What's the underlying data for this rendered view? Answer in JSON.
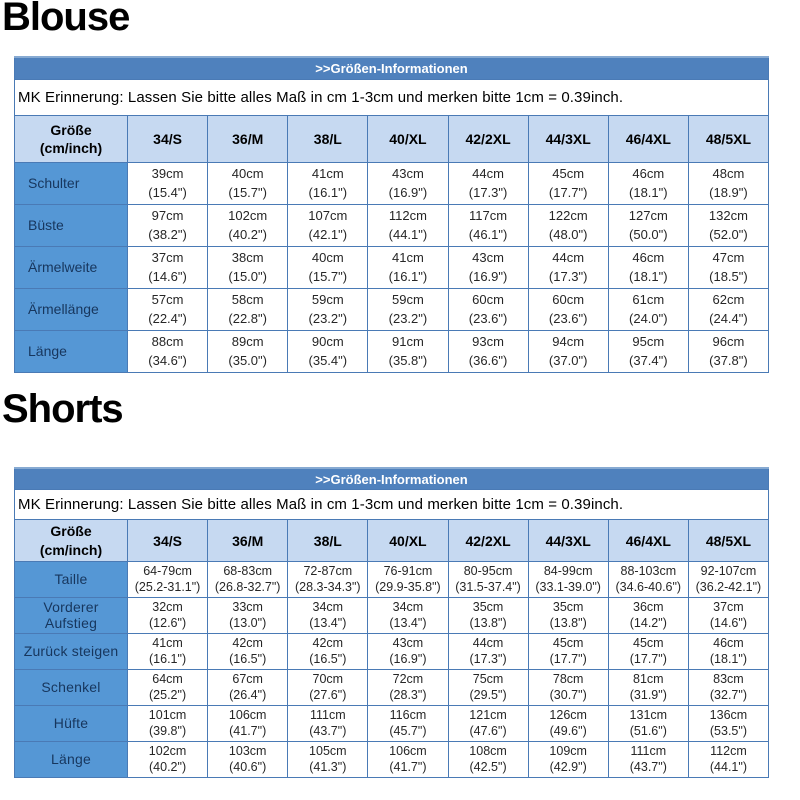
{
  "colors": {
    "banner-bg": "#4f81bd",
    "banner-edge": "#87aad2",
    "header-bg": "#c6d9f1",
    "label-bg": "#5597d5",
    "label-text": "#17365d",
    "border": "#4a7ab5",
    "data-text": "#262626"
  },
  "sections": [
    {
      "title": "Blouse",
      "table": {
        "banner": ">>Größen-Informationen",
        "note": "MK Erinnerung: Lassen Sie bitte alles Maß in cm 1-3cm und merken bitte 1cm = 0.39inch.",
        "corner": [
          "Größe",
          "(cm/inch)"
        ],
        "sizes": [
          "34/S",
          "36/M",
          "38/L",
          "40/XL",
          "42/2XL",
          "44/3XL",
          "46/4XL",
          "48/5XL"
        ],
        "rows": [
          {
            "label": "Schulter",
            "values": [
              [
                "39cm",
                "(15.4\")"
              ],
              [
                "40cm",
                "(15.7\")"
              ],
              [
                "41cm",
                "(16.1\")"
              ],
              [
                "43cm",
                "(16.9\")"
              ],
              [
                "44cm",
                "(17.3\")"
              ],
              [
                "45cm",
                "(17.7\")"
              ],
              [
                "46cm",
                "(18.1\")"
              ],
              [
                "48cm",
                "(18.9\")"
              ]
            ]
          },
          {
            "label": "Büste",
            "values": [
              [
                "97cm",
                "(38.2\")"
              ],
              [
                "102cm",
                "(40.2\")"
              ],
              [
                "107cm",
                "(42.1\")"
              ],
              [
                "112cm",
                "(44.1\")"
              ],
              [
                "117cm",
                "(46.1\")"
              ],
              [
                "122cm",
                "(48.0\")"
              ],
              [
                "127cm",
                "(50.0\")"
              ],
              [
                "132cm",
                "(52.0\")"
              ]
            ]
          },
          {
            "label": "Ärmelweite",
            "values": [
              [
                "37cm",
                "(14.6\")"
              ],
              [
                "38cm",
                "(15.0\")"
              ],
              [
                "40cm",
                "(15.7\")"
              ],
              [
                "41cm",
                "(16.1\")"
              ],
              [
                "43cm",
                "(16.9\")"
              ],
              [
                "44cm",
                "(17.3\")"
              ],
              [
                "46cm",
                "(18.1\")"
              ],
              [
                "47cm",
                "(18.5\")"
              ]
            ]
          },
          {
            "label": "Ärmellänge",
            "values": [
              [
                "57cm",
                "(22.4\")"
              ],
              [
                "58cm",
                "(22.8\")"
              ],
              [
                "59cm",
                "(23.2\")"
              ],
              [
                "59cm",
                "(23.2\")"
              ],
              [
                "60cm",
                "(23.6\")"
              ],
              [
                "60cm",
                "(23.6\")"
              ],
              [
                "61cm",
                "(24.0\")"
              ],
              [
                "62cm",
                "(24.4\")"
              ]
            ]
          },
          {
            "label": "Länge",
            "values": [
              [
                "88cm",
                "(34.6\")"
              ],
              [
                "89cm",
                "(35.0\")"
              ],
              [
                "90cm",
                "(35.4\")"
              ],
              [
                "91cm",
                "(35.8\")"
              ],
              [
                "93cm",
                "(36.6\")"
              ],
              [
                "94cm",
                "(37.0\")"
              ],
              [
                "95cm",
                "(37.4\")"
              ],
              [
                "96cm",
                "(37.8\")"
              ]
            ]
          }
        ]
      }
    },
    {
      "title": "Shorts",
      "table": {
        "banner": ">>Größen-Informationen",
        "note": "MK Erinnerung: Lassen Sie bitte alles Maß in cm 1-3cm und merken bitte 1cm = 0.39inch.",
        "corner": [
          "Größe",
          "(cm/inch)"
        ],
        "sizes": [
          "34/S",
          "36/M",
          "38/L",
          "40/XL",
          "42/2XL",
          "44/3XL",
          "46/4XL",
          "48/5XL"
        ],
        "rows": [
          {
            "label": "Taille",
            "values": [
              [
                "64-79cm",
                "(25.2-31.1\")"
              ],
              [
                "68-83cm",
                "(26.8-32.7\")"
              ],
              [
                "72-87cm",
                "(28.3-34.3\")"
              ],
              [
                "76-91cm",
                "(29.9-35.8\")"
              ],
              [
                "80-95cm",
                "(31.5-37.4\")"
              ],
              [
                "84-99cm",
                "(33.1-39.0\")"
              ],
              [
                "88-103cm",
                "(34.6-40.6\")"
              ],
              [
                "92-107cm",
                "(36.2-42.1\")"
              ]
            ]
          },
          {
            "label": "Vorderer Aufstieg",
            "values": [
              [
                "32cm",
                "(12.6\")"
              ],
              [
                "33cm",
                "(13.0\")"
              ],
              [
                "34cm",
                "(13.4\")"
              ],
              [
                "34cm",
                "(13.4\")"
              ],
              [
                "35cm",
                "(13.8\")"
              ],
              [
                "35cm",
                "(13.8\")"
              ],
              [
                "36cm",
                "(14.2\")"
              ],
              [
                "37cm",
                "(14.6\")"
              ]
            ]
          },
          {
            "label": "Zurück steigen",
            "values": [
              [
                "41cm",
                "(16.1\")"
              ],
              [
                "42cm",
                "(16.5\")"
              ],
              [
                "42cm",
                "(16.5\")"
              ],
              [
                "43cm",
                "(16.9\")"
              ],
              [
                "44cm",
                "(17.3\")"
              ],
              [
                "45cm",
                "(17.7\")"
              ],
              [
                "45cm",
                "(17.7\")"
              ],
              [
                "46cm",
                "(18.1\")"
              ]
            ]
          },
          {
            "label": "Schenkel",
            "values": [
              [
                "64cm",
                "(25.2\")"
              ],
              [
                "67cm",
                "(26.4\")"
              ],
              [
                "70cm",
                "(27.6\")"
              ],
              [
                "72cm",
                "(28.3\")"
              ],
              [
                "75cm",
                "(29.5\")"
              ],
              [
                "78cm",
                "(30.7\")"
              ],
              [
                "81cm",
                "(31.9\")"
              ],
              [
                "83cm",
                "(32.7\")"
              ]
            ]
          },
          {
            "label": "Hüfte",
            "values": [
              [
                "101cm",
                "(39.8\")"
              ],
              [
                "106cm",
                "(41.7\")"
              ],
              [
                "111cm",
                "(43.7\")"
              ],
              [
                "116cm",
                "(45.7\")"
              ],
              [
                "121cm",
                "(47.6\")"
              ],
              [
                "126cm",
                "(49.6\")"
              ],
              [
                "131cm",
                "(51.6\")"
              ],
              [
                "136cm",
                "(53.5\")"
              ]
            ]
          },
          {
            "label": "Länge",
            "values": [
              [
                "102cm",
                "(40.2\")"
              ],
              [
                "103cm",
                "(40.6\")"
              ],
              [
                "105cm",
                "(41.3\")"
              ],
              [
                "106cm",
                "(41.7\")"
              ],
              [
                "108cm",
                "(42.5\")"
              ],
              [
                "109cm",
                "(42.9\")"
              ],
              [
                "111cm",
                "(43.7\")"
              ],
              [
                "112cm",
                "(44.1\")"
              ]
            ]
          }
        ]
      }
    }
  ]
}
